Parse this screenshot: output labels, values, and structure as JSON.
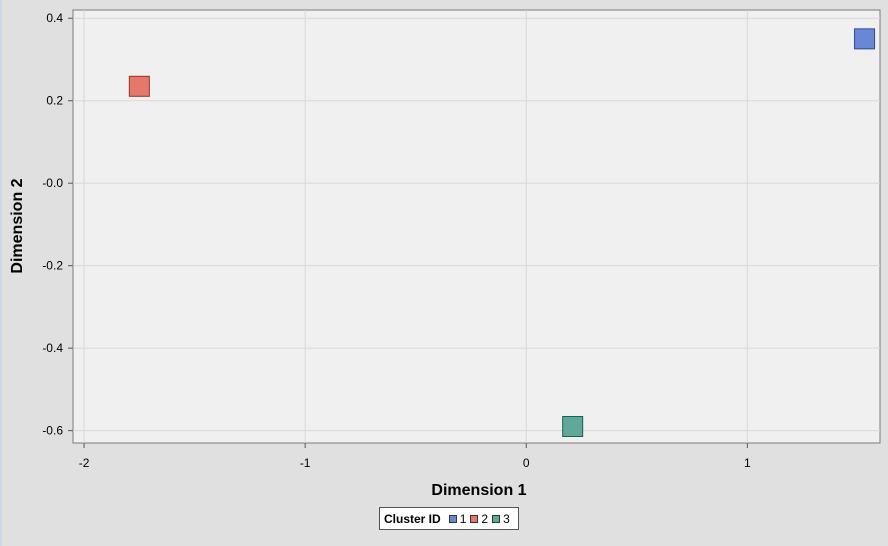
{
  "chart_data": {
    "type": "scatter",
    "xlabel": "Dimension 1",
    "ylabel": "Dimension 2",
    "xlim": [
      -2.05,
      1.6
    ],
    "ylim": [
      -0.63,
      0.42
    ],
    "xticks": [
      -2,
      -1,
      0,
      1
    ],
    "xtick_labels": [
      "-2",
      "-1",
      "0",
      "1"
    ],
    "yticks": [
      0.4,
      0.2,
      0.0,
      -0.2,
      -0.4,
      -0.6
    ],
    "ytick_labels": [
      "0.4",
      "0.2",
      "-0.0",
      "-0.2",
      "-0.4",
      "-0.6"
    ],
    "grid": true,
    "legend_placement": "bottom-center",
    "legend_title": "Cluster ID",
    "series": [
      {
        "name": "1",
        "color": "#6a86d6",
        "stroke": "#2c4a9e",
        "x": [
          1.53
        ],
        "y": [
          0.35
        ]
      },
      {
        "name": "2",
        "color": "#e4786b",
        "stroke": "#9e2e26",
        "x": [
          -1.75
        ],
        "y": [
          0.235
        ]
      },
      {
        "name": "3",
        "color": "#5fa89a",
        "stroke": "#1f5e52",
        "x": [
          0.21
        ],
        "y": [
          -0.59
        ]
      }
    ]
  }
}
